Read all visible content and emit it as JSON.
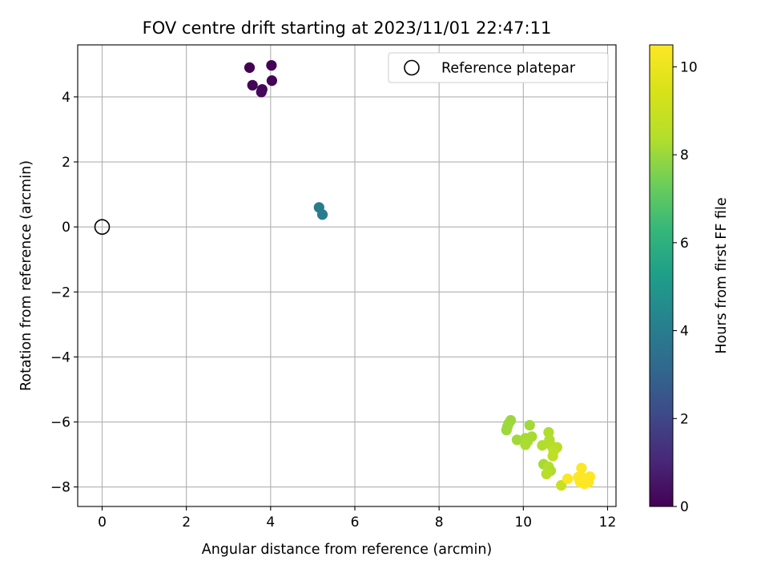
{
  "chart_data": {
    "type": "scatter",
    "title": "FOV centre drift starting at 2023/11/01 22:47:11",
    "xlabel": "Angular distance from reference (arcmin)",
    "ylabel": "Rotation from reference (arcmin)",
    "xlim": [
      -0.58,
      12.2
    ],
    "ylim": [
      -8.6,
      5.6
    ],
    "xticks": [
      0,
      2,
      4,
      6,
      8,
      10,
      12
    ],
    "yticks": [
      -8,
      -6,
      -4,
      -2,
      0,
      2,
      4
    ],
    "grid": true,
    "legend": {
      "placement": "top-right",
      "entries": [
        "Reference platepar"
      ]
    },
    "colorbar": {
      "label": "Hours from first FF file",
      "colormap": "viridis",
      "range": [
        0,
        10.5
      ],
      "ticks": [
        0,
        2,
        4,
        6,
        8,
        10
      ]
    },
    "reference_point": {
      "x": 0,
      "y": 0,
      "label": "Reference platepar"
    },
    "series": [
      {
        "points": [
          {
            "x": 3.5,
            "y": 4.9,
            "c": 0.0
          },
          {
            "x": 4.02,
            "y": 4.97,
            "c": 0.05
          },
          {
            "x": 3.57,
            "y": 4.36,
            "c": 0.1
          },
          {
            "x": 4.03,
            "y": 4.5,
            "c": 0.12
          },
          {
            "x": 3.8,
            "y": 4.23,
            "c": 0.15
          },
          {
            "x": 3.78,
            "y": 4.15,
            "c": 0.18
          },
          {
            "x": 5.15,
            "y": 0.6,
            "c": 3.9
          },
          {
            "x": 5.23,
            "y": 0.38,
            "c": 3.95
          },
          {
            "x": 9.7,
            "y": -5.95,
            "c": 8.0
          },
          {
            "x": 9.65,
            "y": -6.05,
            "c": 8.0
          },
          {
            "x": 9.62,
            "y": -6.15,
            "c": 8.05
          },
          {
            "x": 9.6,
            "y": -6.25,
            "c": 8.05
          },
          {
            "x": 10.15,
            "y": -6.1,
            "c": 8.1
          },
          {
            "x": 9.85,
            "y": -6.55,
            "c": 8.1
          },
          {
            "x": 10.05,
            "y": -6.5,
            "c": 8.15
          },
          {
            "x": 10.2,
            "y": -6.45,
            "c": 8.2
          },
          {
            "x": 10.1,
            "y": -6.6,
            "c": 8.2
          },
          {
            "x": 10.05,
            "y": -6.7,
            "c": 8.25
          },
          {
            "x": 10.6,
            "y": -6.32,
            "c": 8.3
          },
          {
            "x": 10.62,
            "y": -6.55,
            "c": 8.35
          },
          {
            "x": 10.45,
            "y": -6.72,
            "c": 8.35
          },
          {
            "x": 10.68,
            "y": -6.75,
            "c": 8.4
          },
          {
            "x": 10.8,
            "y": -6.78,
            "c": 8.5
          },
          {
            "x": 10.72,
            "y": -6.9,
            "c": 8.6
          },
          {
            "x": 10.7,
            "y": -7.05,
            "c": 8.7
          },
          {
            "x": 10.48,
            "y": -7.3,
            "c": 8.2
          },
          {
            "x": 10.6,
            "y": -7.38,
            "c": 8.4
          },
          {
            "x": 10.65,
            "y": -7.5,
            "c": 8.3
          },
          {
            "x": 10.55,
            "y": -7.6,
            "c": 8.5
          },
          {
            "x": 10.9,
            "y": -7.95,
            "c": 9.0
          },
          {
            "x": 11.05,
            "y": -7.75,
            "c": 10.4
          },
          {
            "x": 11.38,
            "y": -7.42,
            "c": 10.45
          },
          {
            "x": 11.3,
            "y": -7.7,
            "c": 10.5
          },
          {
            "x": 11.42,
            "y": -7.72,
            "c": 10.5
          },
          {
            "x": 11.5,
            "y": -7.75,
            "c": 10.5
          },
          {
            "x": 11.58,
            "y": -7.68,
            "c": 10.5
          },
          {
            "x": 11.35,
            "y": -7.85,
            "c": 10.5
          },
          {
            "x": 11.45,
            "y": -7.9,
            "c": 10.5
          },
          {
            "x": 11.55,
            "y": -7.85,
            "c": 10.5
          }
        ]
      }
    ]
  }
}
